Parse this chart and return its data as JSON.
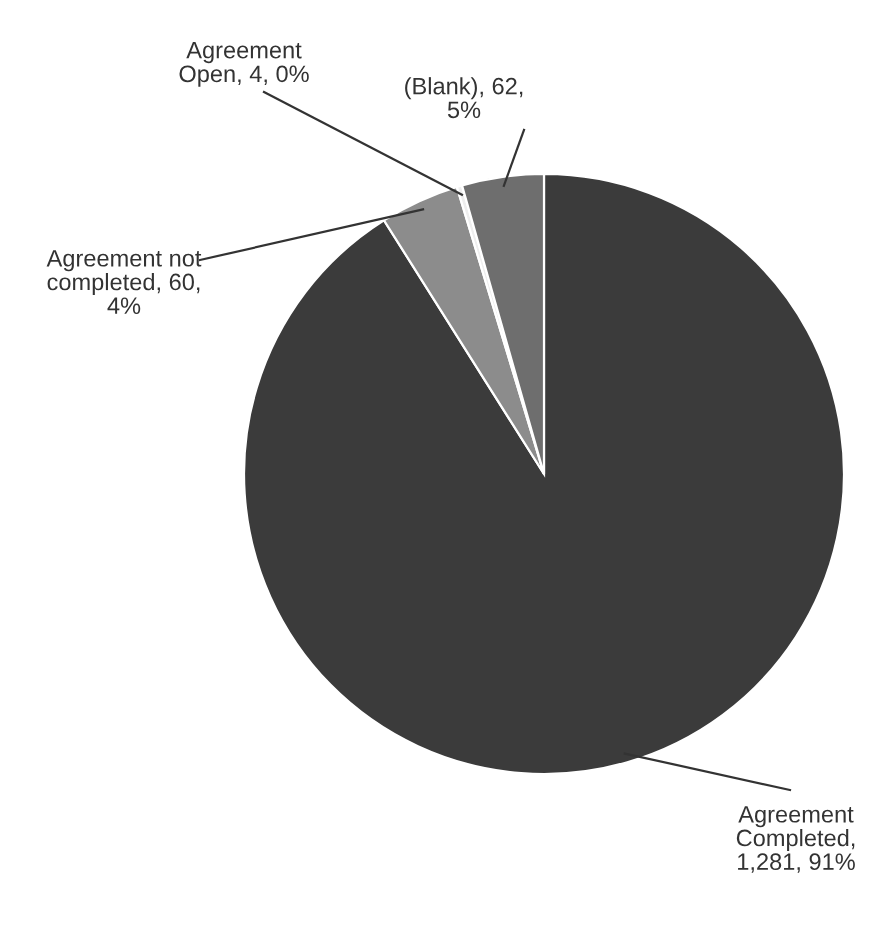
{
  "chart_data": {
    "type": "pie",
    "categories": [
      "Agreement\nCompleted,\n1,281, 91%",
      "Agreement not\ncompleted, 60,\n4%",
      "Agreement\nOpen, 4, 0%",
      "(Blank), 62,\n5%"
    ],
    "values": [
      1281,
      60,
      4,
      62
    ],
    "colors": [
      "#3b3b3b",
      "#8c8c8c",
      "#eeeeee",
      "#6e6e6e"
    ],
    "legend": false
  }
}
